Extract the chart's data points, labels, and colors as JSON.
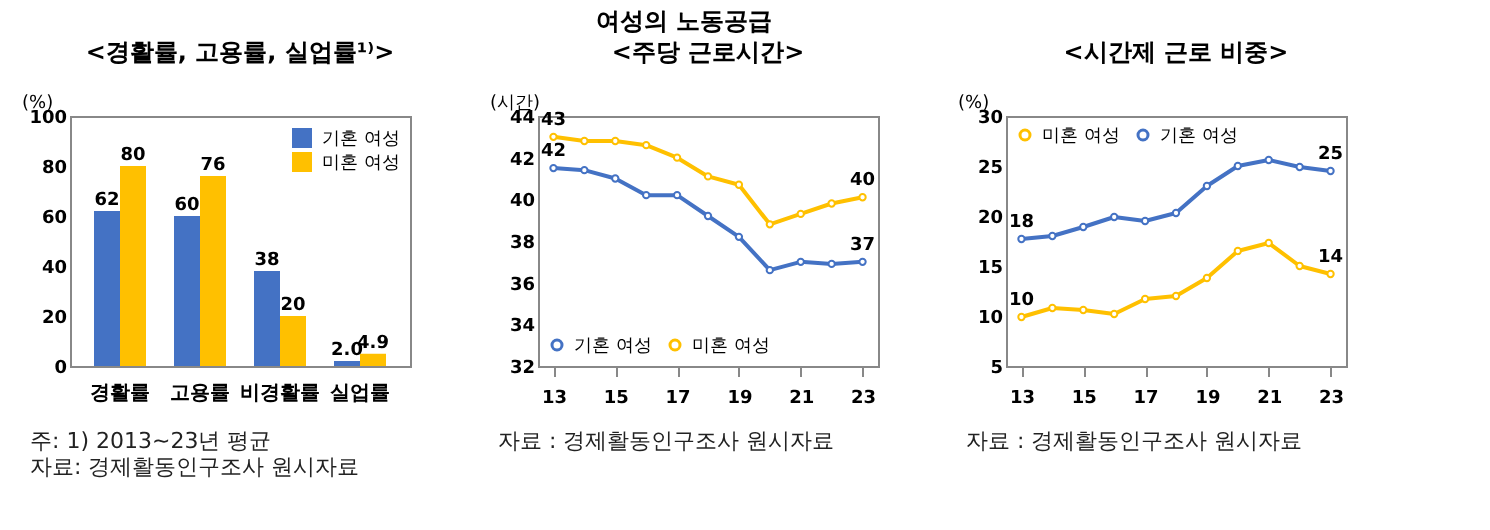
{
  "chart_data": [
    {
      "type": "bar",
      "title": "<경활률, 고용률, 실업률¹⁾>",
      "ylabel": "(%)",
      "categories": [
        "경활률",
        "고용률",
        "비경활률",
        "실업률"
      ],
      "series": [
        {
          "name": "기혼 여성",
          "color": "#4472c4",
          "values": [
            62,
            60,
            38,
            2.0
          ],
          "value_labels": [
            "62",
            "60",
            "38",
            "2.0"
          ]
        },
        {
          "name": "미혼 여성",
          "color": "#ffc000",
          "values": [
            80,
            76,
            20,
            4.9
          ],
          "value_labels": [
            "80",
            "76",
            "20",
            "4.9"
          ]
        }
      ],
      "ylim": [
        0,
        100
      ],
      "yticks": [
        0,
        20,
        40,
        60,
        80,
        100
      ],
      "grid": false,
      "legend": "top right",
      "annotations": [
        "여성의 노동공급",
        "주: 1) 2013~23년 평균",
        "자료: 경제활동인구조사 원시자료"
      ]
    },
    {
      "type": "line",
      "title": "<주당 근로시간>",
      "ylabel": "(시간)",
      "x": [
        13,
        14,
        15,
        16,
        17,
        18,
        19,
        20,
        21,
        22,
        23
      ],
      "series": [
        {
          "name": "기혼 여성",
          "color": "#4472c4",
          "values": [
            41.5,
            41.4,
            41.0,
            40.2,
            40.2,
            39.2,
            38.2,
            36.6,
            37.0,
            36.9,
            37.0
          ],
          "value_labels": [
            "42",
            null,
            null,
            null,
            null,
            null,
            null,
            null,
            null,
            null,
            "37"
          ]
        },
        {
          "name": "미혼 여성",
          "color": "#ffc000",
          "values": [
            43.0,
            42.8,
            42.8,
            42.6,
            42.0,
            41.1,
            40.7,
            38.8,
            39.3,
            39.8,
            40.1
          ],
          "value_labels": [
            "43",
            null,
            null,
            null,
            null,
            null,
            null,
            null,
            null,
            null,
            "40"
          ]
        }
      ],
      "xlim": [
        12.5,
        23.5
      ],
      "xticks": [
        13,
        15,
        17,
        19,
        21,
        23
      ],
      "ylim": [
        32,
        44
      ],
      "yticks": [
        32,
        34,
        36,
        38,
        40,
        42,
        44
      ],
      "grid": false,
      "legend": "bottom left",
      "marker": "circle",
      "line_style": "solid",
      "annotations": [
        "자료 : 경제활동인구조사 원시자료"
      ]
    },
    {
      "type": "line",
      "title": "<시간제 근로 비중>",
      "ylabel": "(%)",
      "x": [
        13,
        14,
        15,
        16,
        17,
        18,
        19,
        20,
        21,
        22,
        23
      ],
      "series": [
        {
          "name": "미혼 여성",
          "color": "#ffc000",
          "values": [
            9.9,
            10.8,
            10.6,
            10.2,
            11.7,
            12.0,
            13.8,
            16.5,
            17.3,
            15.0,
            14.2
          ],
          "value_labels": [
            "10",
            null,
            null,
            null,
            null,
            null,
            null,
            null,
            null,
            null,
            "14"
          ]
        },
        {
          "name": "기혼 여성",
          "color": "#4472c4",
          "values": [
            17.7,
            18.0,
            18.9,
            19.9,
            19.5,
            20.3,
            23.0,
            25.0,
            25.6,
            24.9,
            24.5
          ],
          "value_labels": [
            "18",
            null,
            null,
            null,
            null,
            null,
            null,
            null,
            null,
            null,
            "25"
          ]
        }
      ],
      "xlim": [
        12.5,
        23.5
      ],
      "xticks": [
        13,
        15,
        17,
        19,
        21,
        23
      ],
      "ylim": [
        5,
        30
      ],
      "yticks": [
        5,
        10,
        15,
        20,
        25,
        30
      ],
      "grid": false,
      "legend": "top left",
      "marker": "circle",
      "line_style": "solid",
      "annotations": [
        "자료 : 경제활동인구조사 원시자료"
      ]
    }
  ]
}
